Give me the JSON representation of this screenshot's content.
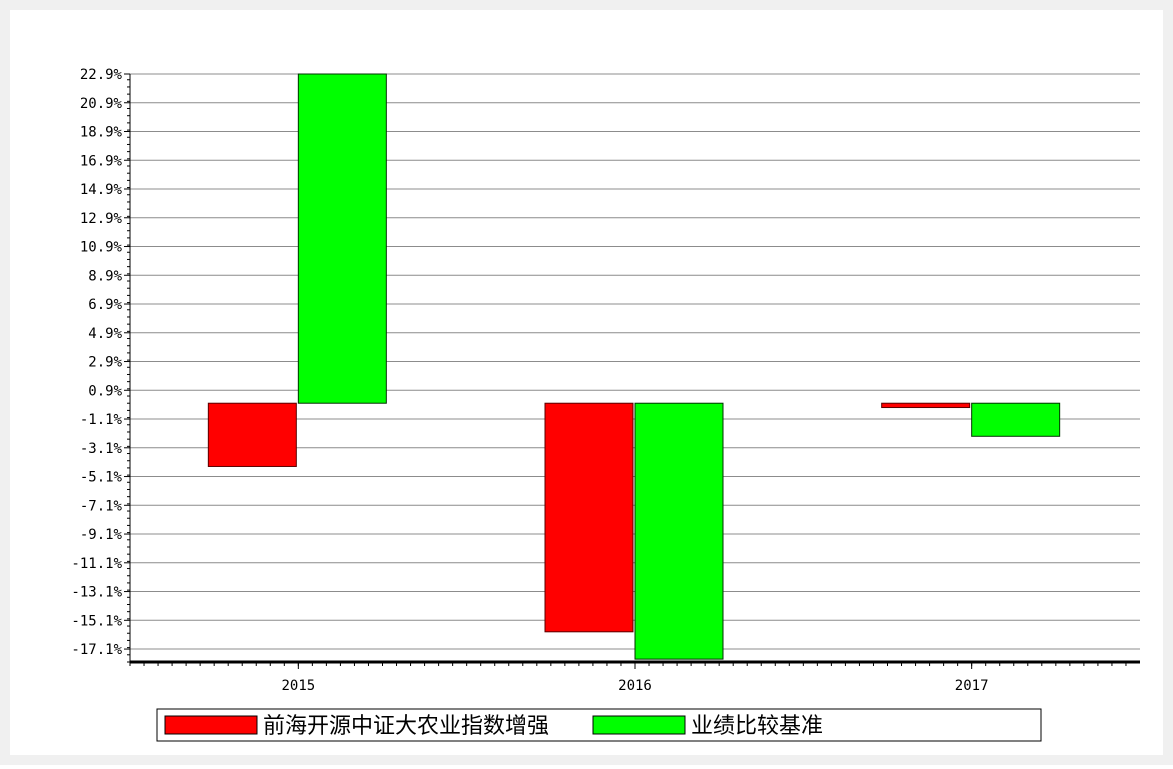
{
  "chart_data": {
    "type": "bar",
    "categories": [
      "2015",
      "2016",
      "2017"
    ],
    "series": [
      {
        "name": "前海开源中证大农业指数增强",
        "color": "#ff0000",
        "values": [
          -4.4,
          -15.9,
          -0.3
        ]
      },
      {
        "name": "业绩比较基准",
        "color": "#00ff00",
        "values": [
          22.9,
          -17.8,
          -2.3
        ]
      }
    ],
    "yticks": [
      22.9,
      20.9,
      18.9,
      16.9,
      14.9,
      12.9,
      10.9,
      8.9,
      6.9,
      4.9,
      2.9,
      0.9,
      -1.1,
      -3.1,
      -5.1,
      -7.1,
      -9.1,
      -11.1,
      -13.1,
      -15.1,
      -17.1
    ],
    "ytick_labels": [
      "22.9%",
      "20.9%",
      "18.9%",
      "16.9%",
      "14.9%",
      "12.9%",
      "10.9%",
      "8.9%",
      "6.9%",
      "4.9%",
      "2.9%",
      "0.9%",
      "-1.1%",
      "-3.1%",
      "-5.1%",
      "-7.1%",
      "-9.1%",
      "-11.1%",
      "-13.1%",
      "-15.1%",
      "-17.1%"
    ],
    "ylim": [
      -18.0,
      22.9
    ],
    "grid": true,
    "legend_position": "bottom",
    "title": "",
    "xlabel": "",
    "ylabel": ""
  }
}
